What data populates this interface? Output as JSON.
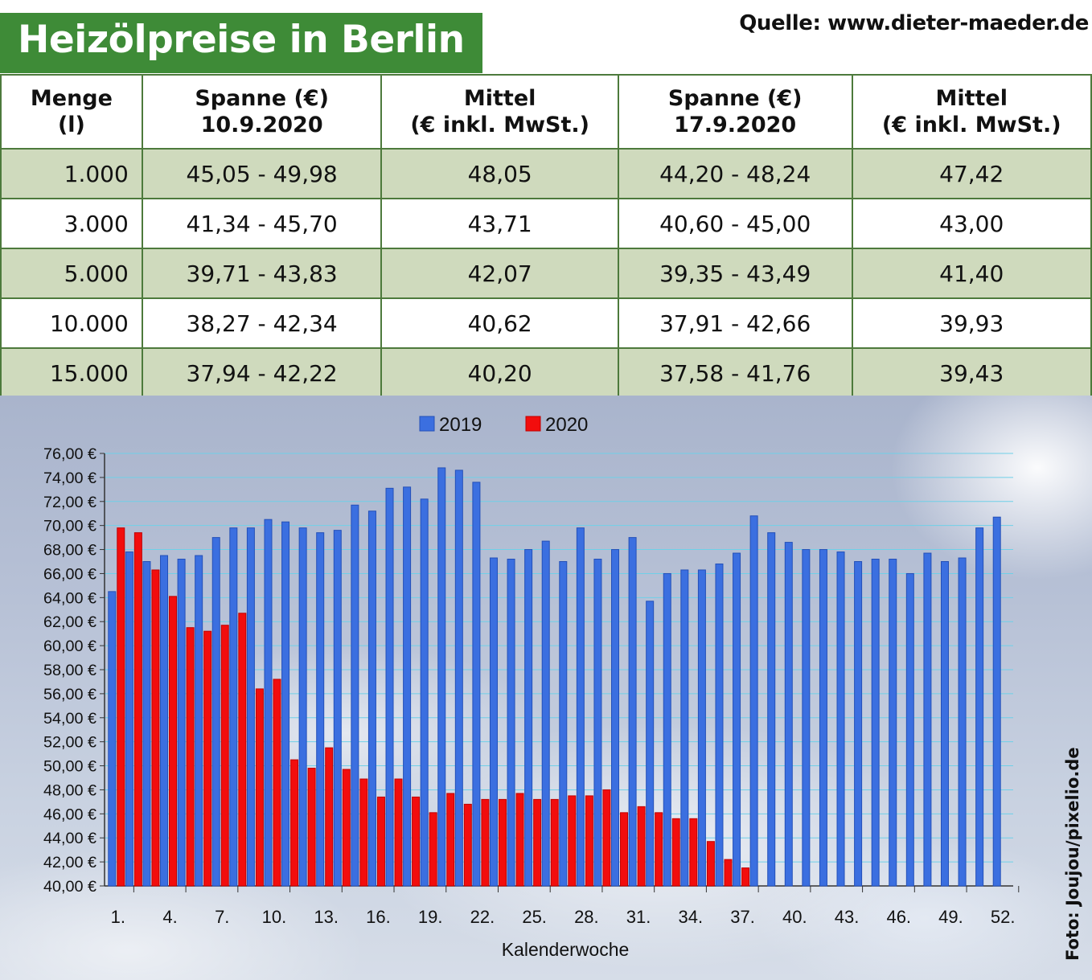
{
  "title": "Heizölpreise in Berlin",
  "source": "Quelle: www.dieter-maeder.de",
  "photo_credit": "Foto: Joujou/pixelio.de",
  "table": {
    "headers": [
      [
        "Menge",
        "(l)"
      ],
      [
        "Spanne (€)",
        "10.9.2020"
      ],
      [
        "Mittel",
        "(€ inkl. MwSt.)"
      ],
      [
        "Spanne (€)",
        "17.9.2020"
      ],
      [
        "Mittel",
        "(€ inkl. MwSt.)"
      ]
    ],
    "rows": [
      [
        "1.000",
        "45,05 - 49,98",
        "48,05",
        "44,20 - 48,24",
        "47,42"
      ],
      [
        "3.000",
        "41,34 - 45,70",
        "43,71",
        "40,60 - 45,00",
        "43,00"
      ],
      [
        "5.000",
        "39,71 - 43,83",
        "42,07",
        "39,35 - 43,49",
        "41,40"
      ],
      [
        "10.000",
        "38,27 - 42,34",
        "40,62",
        "37,91 - 42,66",
        "39,93"
      ],
      [
        "15.000",
        "37,94 - 42,22",
        "40,20",
        "37,58 - 41,76",
        "39,43"
      ]
    ]
  },
  "chart_data": {
    "type": "bar",
    "xlabel": "Kalenderwoche",
    "ylabel": "",
    "ylim": [
      40,
      76
    ],
    "y_tick_labels": [
      "40,00 €",
      "42,00 €",
      "44,00 €",
      "46,00 €",
      "48,00 €",
      "50,00 €",
      "52,00 €",
      "54,00 €",
      "56,00 €",
      "58,00 €",
      "60,00 €",
      "62,00 €",
      "64,00 €",
      "66,00 €",
      "68,00 €",
      "70,00 €",
      "72,00 €",
      "74,00 €",
      "76,00 €"
    ],
    "x": [
      1,
      2,
      3,
      4,
      5,
      6,
      7,
      8,
      9,
      10,
      11,
      12,
      13,
      14,
      15,
      16,
      17,
      18,
      19,
      20,
      21,
      22,
      23,
      24,
      25,
      26,
      27,
      28,
      29,
      30,
      31,
      32,
      33,
      34,
      35,
      36,
      37,
      38,
      39,
      40,
      41,
      42,
      43,
      44,
      45,
      46,
      47,
      48,
      49,
      50,
      51,
      52
    ],
    "x_tick_labels": [
      "1.",
      "4.",
      "7.",
      "10.",
      "13.",
      "16.",
      "19.",
      "22.",
      "25.",
      "28.",
      "31.",
      "34.",
      "37.",
      "40.",
      "43.",
      "46.",
      "49.",
      "52."
    ],
    "x_tick_weeks": [
      1,
      4,
      7,
      10,
      13,
      16,
      19,
      22,
      25,
      28,
      31,
      34,
      37,
      40,
      43,
      46,
      49,
      52
    ],
    "legend_position": "top-center",
    "grid": true,
    "series": [
      {
        "name": "2019",
        "color": "#3b6fe0",
        "values": [
          64.5,
          67.8,
          67.0,
          67.5,
          67.2,
          67.5,
          69.0,
          69.8,
          69.8,
          70.5,
          70.3,
          69.8,
          69.4,
          69.6,
          71.7,
          71.2,
          73.1,
          73.2,
          72.2,
          74.8,
          74.6,
          73.6,
          67.3,
          67.2,
          68.0,
          68.7,
          67.0,
          69.8,
          67.2,
          68.0,
          69.0,
          63.7,
          66.0,
          66.3,
          66.3,
          66.8,
          67.7,
          70.8,
          69.4,
          68.6,
          68.0,
          68.0,
          67.8,
          67.0,
          67.2,
          67.2,
          66.0,
          67.7,
          67.0,
          67.3,
          69.8,
          70.7
        ]
      },
      {
        "name": "2020",
        "color": "#f20d0d",
        "values": [
          69.8,
          69.4,
          66.3,
          64.1,
          61.5,
          61.2,
          61.7,
          62.7,
          56.4,
          57.2,
          50.5,
          49.8,
          51.5,
          49.7,
          48.9,
          47.4,
          48.9,
          47.4,
          46.1,
          47.7,
          46.8,
          47.2,
          47.2,
          47.7,
          47.2,
          47.2,
          47.5,
          47.5,
          48.0,
          46.1,
          46.6,
          46.1,
          45.6,
          45.6,
          43.7,
          42.2,
          41.5,
          null,
          null,
          null,
          null,
          null,
          null,
          null,
          null,
          null,
          null,
          null,
          null,
          null,
          null,
          null
        ]
      }
    ]
  }
}
